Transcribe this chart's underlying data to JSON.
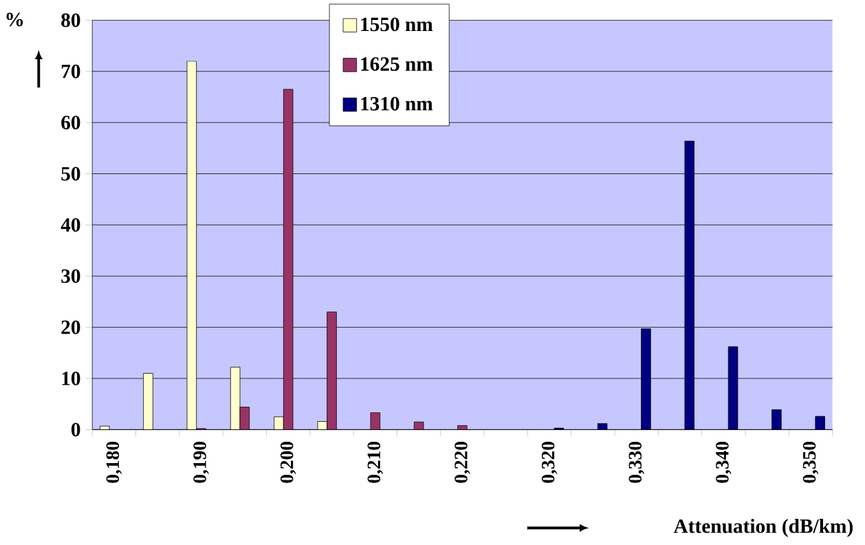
{
  "chart_data": {
    "type": "bar",
    "xlabel": "Attenuation (dB/km)",
    "ylabel": "%",
    "categories": [
      "0,180",
      null,
      "0,190",
      null,
      "0,200",
      null,
      "0,210",
      null,
      "0,220",
      null,
      "0,320",
      null,
      "0,330",
      null,
      "0,340",
      null,
      "0,350"
    ],
    "series": [
      {
        "name": "1550 nm",
        "color": "#ffffcc",
        "values": [
          0.7,
          11,
          72,
          12.2,
          2.5,
          1.6,
          null,
          null,
          null,
          null,
          null,
          null,
          null,
          null,
          null,
          null,
          null
        ]
      },
      {
        "name": "1625 nm",
        "color": "#993366",
        "values": [
          null,
          null,
          0.2,
          4.4,
          66.5,
          23,
          3.3,
          1.5,
          0.8,
          null,
          null,
          null,
          null,
          null,
          null,
          null,
          null
        ]
      },
      {
        "name": "1310 nm",
        "color": "#000080",
        "values": [
          null,
          null,
          null,
          null,
          null,
          null,
          null,
          null,
          null,
          null,
          0.3,
          1.2,
          19.7,
          56.4,
          16.2,
          3.9,
          2.6
        ]
      }
    ],
    "ylim": [
      0,
      80
    ],
    "yticks": [
      0,
      10,
      20,
      30,
      40,
      50,
      60,
      70,
      80
    ],
    "grid": "y",
    "legend": "top"
  }
}
